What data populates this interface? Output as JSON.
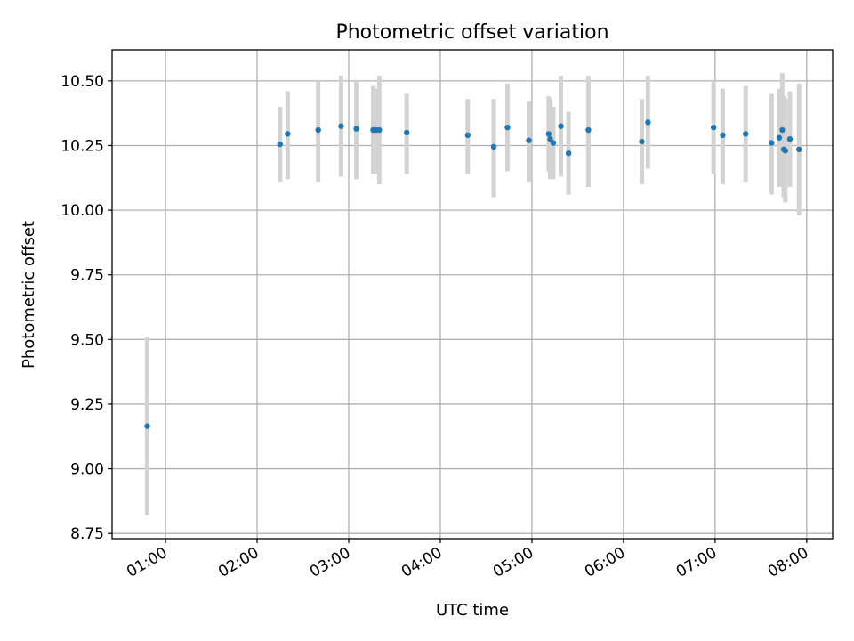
{
  "chart_data": {
    "type": "scatter",
    "title": "Photometric offset variation",
    "xlabel": "UTC time",
    "ylabel": "Photometric offset",
    "x_tick_labels": [
      "01:00",
      "02:00",
      "03:00",
      "04:00",
      "05:00",
      "06:00",
      "07:00",
      "08:00"
    ],
    "y_tick_labels": [
      "8.75",
      "9.00",
      "9.25",
      "9.50",
      "9.75",
      "10.00",
      "10.25",
      "10.50"
    ],
    "xlim": [
      "00:25",
      "08:17"
    ],
    "ylim": [
      8.73,
      10.62
    ],
    "grid": true,
    "colors": {
      "point": "#1f77b4",
      "errorbar": "#d3d3d3",
      "grid": "#b0b0b0"
    },
    "series": [
      {
        "points": [
          {
            "x": "00:48",
            "y": 9.165,
            "yerr_low": 8.82,
            "yerr_high": 9.51
          },
          {
            "x": "02:15",
            "y": 10.255,
            "yerr_low": 10.11,
            "yerr_high": 10.4
          },
          {
            "x": "02:20",
            "y": 10.295,
            "yerr_low": 10.12,
            "yerr_high": 10.46
          },
          {
            "x": "02:40",
            "y": 10.31,
            "yerr_low": 10.11,
            "yerr_high": 10.5
          },
          {
            "x": "02:55",
            "y": 10.325,
            "yerr_low": 10.13,
            "yerr_high": 10.52
          },
          {
            "x": "03:05",
            "y": 10.315,
            "yerr_low": 10.12,
            "yerr_high": 10.5
          },
          {
            "x": "03:16",
            "y": 10.31,
            "yerr_low": 10.14,
            "yerr_high": 10.48
          },
          {
            "x": "03:18",
            "y": 10.31,
            "yerr_low": 10.14,
            "yerr_high": 10.47
          },
          {
            "x": "03:20",
            "y": 10.31,
            "yerr_low": 10.1,
            "yerr_high": 10.52
          },
          {
            "x": "03:38",
            "y": 10.3,
            "yerr_low": 10.14,
            "yerr_high": 10.45
          },
          {
            "x": "04:18",
            "y": 10.29,
            "yerr_low": 10.14,
            "yerr_high": 10.43
          },
          {
            "x": "04:35",
            "y": 10.245,
            "yerr_low": 10.05,
            "yerr_high": 10.43
          },
          {
            "x": "04:44",
            "y": 10.32,
            "yerr_low": 10.15,
            "yerr_high": 10.49
          },
          {
            "x": "04:58",
            "y": 10.27,
            "yerr_low": 10.11,
            "yerr_high": 10.42
          },
          {
            "x": "05:11",
            "y": 10.295,
            "yerr_low": 10.15,
            "yerr_high": 10.44
          },
          {
            "x": "05:12",
            "y": 10.275,
            "yerr_low": 10.12,
            "yerr_high": 10.43
          },
          {
            "x": "05:14",
            "y": 10.26,
            "yerr_low": 10.12,
            "yerr_high": 10.4
          },
          {
            "x": "05:19",
            "y": 10.325,
            "yerr_low": 10.13,
            "yerr_high": 10.52
          },
          {
            "x": "05:24",
            "y": 10.22,
            "yerr_low": 10.06,
            "yerr_high": 10.38
          },
          {
            "x": "05:37",
            "y": 10.31,
            "yerr_low": 10.09,
            "yerr_high": 10.52
          },
          {
            "x": "06:12",
            "y": 10.265,
            "yerr_low": 10.1,
            "yerr_high": 10.43
          },
          {
            "x": "06:16",
            "y": 10.34,
            "yerr_low": 10.16,
            "yerr_high": 10.52
          },
          {
            "x": "06:59",
            "y": 10.32,
            "yerr_low": 10.14,
            "yerr_high": 10.5
          },
          {
            "x": "07:05",
            "y": 10.29,
            "yerr_low": 10.1,
            "yerr_high": 10.47
          },
          {
            "x": "07:20",
            "y": 10.295,
            "yerr_low": 10.11,
            "yerr_high": 10.48
          },
          {
            "x": "07:37",
            "y": 10.26,
            "yerr_low": 10.06,
            "yerr_high": 10.45
          },
          {
            "x": "07:42",
            "y": 10.28,
            "yerr_low": 10.09,
            "yerr_high": 10.47
          },
          {
            "x": "07:44",
            "y": 10.31,
            "yerr_low": 10.09,
            "yerr_high": 10.53
          },
          {
            "x": "07:45",
            "y": 10.235,
            "yerr_low": 10.05,
            "yerr_high": 10.44
          },
          {
            "x": "07:46",
            "y": 10.23,
            "yerr_low": 10.03,
            "yerr_high": 10.43
          },
          {
            "x": "07:49",
            "y": 10.275,
            "yerr_low": 10.09,
            "yerr_high": 10.46
          },
          {
            "x": "07:55",
            "y": 10.235,
            "yerr_low": 9.98,
            "yerr_high": 10.49
          }
        ]
      }
    ]
  }
}
